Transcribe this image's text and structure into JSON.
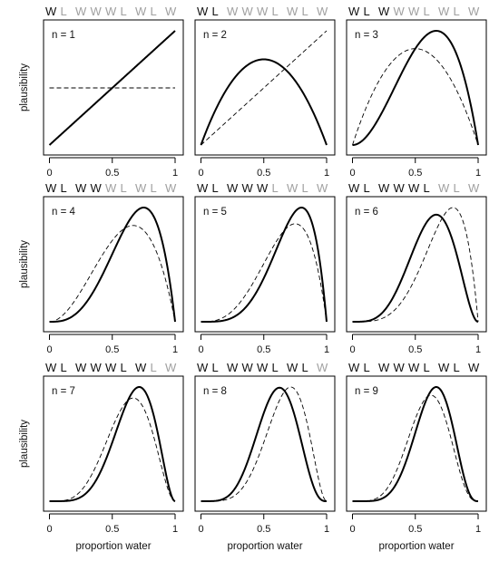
{
  "sequence": [
    "W",
    "L",
    "W",
    "W",
    "W",
    "L",
    "W",
    "L",
    "W"
  ],
  "chart_data": [
    {
      "type": "line",
      "panel_label": "n = 1",
      "n": 1,
      "w": 1,
      "prev_n": 0,
      "prev_w": 0,
      "x": [
        0,
        0.5,
        1
      ],
      "ylabel": "plausibility",
      "xlabel": "",
      "xlim": [
        0,
        1
      ],
      "xticks": [
        "0",
        "0.5",
        "1"
      ],
      "series": [
        {
          "style": "solid",
          "values": [
            0,
            1,
            2
          ]
        },
        {
          "style": "dashed",
          "values": [
            1,
            1,
            1
          ]
        }
      ]
    },
    {
      "type": "line",
      "panel_label": "n = 2",
      "n": 2,
      "w": 1,
      "prev_n": 1,
      "prev_w": 1,
      "x": [
        0,
        0.5,
        1
      ],
      "ylabel": "",
      "xlabel": "",
      "xlim": [
        0,
        1
      ],
      "xticks": [
        "0",
        "0.5",
        "1"
      ],
      "series": [
        {
          "style": "solid",
          "values": [
            0,
            1.5,
            0
          ]
        },
        {
          "style": "dashed",
          "values": [
            0,
            1,
            2
          ]
        }
      ]
    },
    {
      "type": "line",
      "panel_label": "n = 3",
      "n": 3,
      "w": 2,
      "prev_n": 2,
      "prev_w": 1,
      "x": [
        0,
        0.5,
        1
      ],
      "ylabel": "",
      "xlabel": "",
      "xlim": [
        0,
        1
      ],
      "xticks": [
        "0",
        "0.5",
        "1"
      ],
      "series": [
        {
          "style": "solid",
          "values": [
            0,
            1.5,
            0
          ]
        },
        {
          "style": "dashed",
          "values": [
            0,
            1.5,
            0
          ]
        }
      ]
    },
    {
      "type": "line",
      "panel_label": "n = 4",
      "n": 4,
      "w": 3,
      "prev_n": 3,
      "prev_w": 2,
      "x": [
        0,
        0.5,
        1
      ],
      "ylabel": "plausibility",
      "xlabel": "",
      "xlim": [
        0,
        1
      ],
      "xticks": [
        "0",
        "0.5",
        "1"
      ],
      "series": [
        {
          "style": "solid",
          "values": [
            0,
            1.25,
            0
          ]
        },
        {
          "style": "dashed",
          "values": [
            0,
            1.5,
            0
          ]
        }
      ]
    },
    {
      "type": "line",
      "panel_label": "n = 5",
      "n": 5,
      "w": 4,
      "prev_n": 4,
      "prev_w": 3,
      "x": [
        0,
        0.5,
        1
      ],
      "ylabel": "",
      "xlabel": "",
      "xlim": [
        0,
        1
      ],
      "xticks": [
        "0",
        "0.5",
        "1"
      ],
      "series": [
        {
          "style": "solid",
          "values": [
            0,
            0.94,
            0
          ]
        },
        {
          "style": "dashed",
          "values": [
            0,
            1.25,
            0
          ]
        }
      ]
    },
    {
      "type": "line",
      "panel_label": "n = 6",
      "n": 6,
      "w": 4,
      "prev_n": 5,
      "prev_w": 4,
      "x": [
        0,
        0.5,
        1
      ],
      "ylabel": "",
      "xlabel": "",
      "xlim": [
        0,
        1
      ],
      "xticks": [
        "0",
        "0.5",
        "1"
      ],
      "series": [
        {
          "style": "solid",
          "values": [
            0,
            1.64,
            0
          ]
        },
        {
          "style": "dashed",
          "values": [
            0,
            0.94,
            0
          ]
        }
      ]
    },
    {
      "type": "line",
      "panel_label": "n = 7",
      "n": 7,
      "w": 5,
      "prev_n": 6,
      "prev_w": 4,
      "x": [
        0,
        0.5,
        1
      ],
      "ylabel": "plausibility",
      "xlabel": "proportion water",
      "xlim": [
        0,
        1
      ],
      "xticks": [
        "0",
        "0.5",
        "1"
      ],
      "series": [
        {
          "style": "solid",
          "values": [
            0,
            1.64,
            0
          ]
        },
        {
          "style": "dashed",
          "values": [
            0,
            1.64,
            0
          ]
        }
      ]
    },
    {
      "type": "line",
      "panel_label": "n = 8",
      "n": 8,
      "w": 5,
      "prev_n": 7,
      "prev_w": 5,
      "x": [
        0,
        0.5,
        1
      ],
      "ylabel": "",
      "xlabel": "proportion water",
      "xlim": [
        0,
        1
      ],
      "xticks": [
        "0",
        "0.5",
        "1"
      ],
      "series": [
        {
          "style": "solid",
          "values": [
            0,
            1.64,
            0
          ]
        },
        {
          "style": "dashed",
          "values": [
            0,
            1.64,
            0
          ]
        }
      ]
    },
    {
      "type": "line",
      "panel_label": "n = 9",
      "n": 9,
      "w": 6,
      "prev_n": 8,
      "prev_w": 5,
      "x": [
        0,
        0.5,
        1
      ],
      "ylabel": "",
      "xlabel": "proportion water",
      "xlim": [
        0,
        1
      ],
      "xticks": [
        "0",
        "0.5",
        "1"
      ],
      "series": [
        {
          "style": "solid",
          "values": [
            0,
            1.64,
            0
          ]
        },
        {
          "style": "dashed",
          "values": [
            0,
            1.64,
            0
          ]
        }
      ]
    }
  ]
}
